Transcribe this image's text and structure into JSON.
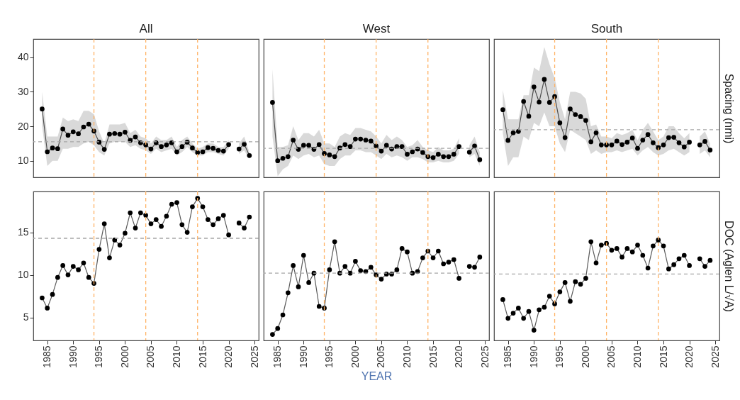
{
  "chart_data": [
    {
      "type": "line",
      "title": "All",
      "x": [
        1984,
        1985,
        1986,
        1987,
        1988,
        1989,
        1990,
        1991,
        1992,
        1993,
        1994,
        1995,
        1996,
        1997,
        1998,
        1999,
        2000,
        2001,
        2002,
        2003,
        2004,
        2005,
        2006,
        2007,
        2008,
        2009,
        2010,
        2011,
        2012,
        2013,
        2014,
        2015,
        2016,
        2017,
        2018,
        2019,
        2020,
        2021,
        2022,
        2023,
        2024
      ],
      "xlim": [
        1982.3,
        2025.8
      ],
      "xticks": [
        1985,
        1990,
        1995,
        2000,
        2005,
        2010,
        2015,
        2020,
        2025
      ],
      "ylim": [
        5.2,
        45.3
      ],
      "yticks": [
        10,
        20,
        30,
        40
      ],
      "tick_labels": "y",
      "marker": "circle",
      "series": [
        {
          "color": "#000000",
          "values": [
            25.0,
            12.6,
            13.7,
            13.5,
            19.2,
            17.4,
            18.4,
            17.8,
            19.8,
            20.6,
            18.6,
            15.4,
            13.3,
            17.7,
            17.9,
            17.7,
            18.3,
            15.9,
            16.9,
            15.2,
            14.6,
            13.4,
            15.2,
            14.1,
            14.6,
            15.2,
            12.6,
            14.1,
            15.4,
            13.7,
            12.4,
            12.6,
            13.8,
            13.6,
            13.0,
            12.8,
            14.7,
            null,
            13.4,
            14.8,
            11.5
          ],
          "lower": [
            20,
            8.5,
            10,
            10,
            13.5,
            13.5,
            14,
            14,
            15,
            15.5,
            14.5,
            12.5,
            11.5,
            15,
            15.5,
            15.5,
            15.5,
            14,
            14.5,
            13.5,
            13,
            12,
            13.5,
            12.5,
            13,
            13.5,
            11.5,
            12.5,
            14,
            12.5,
            11.5,
            11.5,
            12.5,
            12.5,
            12,
            11.5,
            13.5,
            null,
            12,
            13,
            10.5
          ],
          "upper": [
            30,
            17,
            17,
            17,
            22.5,
            21.5,
            22,
            21.5,
            24.5,
            24.5,
            23.5,
            18.5,
            15,
            20.5,
            20.5,
            20.5,
            21,
            18,
            19,
            17,
            16.5,
            15,
            17,
            16,
            16,
            17,
            14,
            16,
            17,
            15,
            13.5,
            14,
            15,
            15,
            14,
            14,
            16,
            null,
            15,
            17,
            12.5
          ]
        }
      ],
      "ref_lines": [
        {
          "axis": "x",
          "value": 1994,
          "color": "#ffb366",
          "line_style": "dashed"
        },
        {
          "axis": "x",
          "value": 2004,
          "color": "#ffb366",
          "line_style": "dashed"
        },
        {
          "axis": "x",
          "value": 2014,
          "color": "#ffb366",
          "line_style": "dashed"
        },
        {
          "axis": "y",
          "value": 15.5,
          "color": "#a6a6a6",
          "line_style": "dashed"
        }
      ]
    },
    {
      "type": "line",
      "title": "West",
      "x": [
        1984,
        1985,
        1986,
        1987,
        1988,
        1989,
        1990,
        1991,
        1992,
        1993,
        1994,
        1995,
        1996,
        1997,
        1998,
        1999,
        2000,
        2001,
        2002,
        2003,
        2004,
        2005,
        2006,
        2007,
        2008,
        2009,
        2010,
        2011,
        2012,
        2013,
        2014,
        2015,
        2016,
        2017,
        2018,
        2019,
        2020,
        2021,
        2022,
        2023,
        2024
      ],
      "xlim": [
        1982.3,
        2025.8
      ],
      "xticks": [
        1985,
        1990,
        1995,
        2000,
        2005,
        2010,
        2015,
        2020,
        2025
      ],
      "ylim": [
        5.2,
        45.3
      ],
      "yticks": [
        10,
        20,
        30,
        40
      ],
      "tick_labels": false,
      "marker": "circle",
      "series": [
        {
          "color": "#000000",
          "values": [
            26.9,
            10.0,
            10.7,
            11.2,
            16.0,
            13.3,
            14.5,
            14.5,
            13.3,
            14.7,
            12.1,
            11.7,
            11.2,
            13.7,
            14.7,
            14.1,
            16.3,
            16.3,
            16.0,
            15.7,
            14.3,
            12.8,
            14.5,
            13.4,
            14.1,
            14.1,
            11.9,
            12.6,
            13.4,
            12.4,
            11.2,
            10.9,
            11.9,
            11.2,
            11.2,
            11.9,
            14.1,
            null,
            12.5,
            14.3,
            10.3
          ],
          "lower": [
            17,
            5.5,
            7.5,
            8.5,
            11.5,
            10.5,
            11.5,
            12,
            11,
            11.5,
            9,
            8.5,
            8.5,
            10.5,
            11.5,
            11.5,
            13,
            13,
            12.5,
            12.5,
            11.5,
            10.5,
            12,
            11,
            11.5,
            11,
            10,
            11,
            11,
            10.5,
            9.5,
            9.5,
            10,
            9.5,
            9.5,
            10,
            12,
            null,
            11,
            12,
            8.5
          ],
          "upper": [
            36.5,
            14,
            14,
            14.5,
            20,
            16,
            18,
            18,
            17,
            19,
            15,
            15,
            14,
            17,
            18,
            17.5,
            19.5,
            19.5,
            19,
            18.5,
            17,
            15,
            17.5,
            16,
            17,
            16,
            14,
            14.5,
            16,
            14,
            13,
            12.5,
            14,
            13,
            13,
            13.5,
            16.5,
            null,
            14.5,
            17,
            12.5
          ]
        }
      ],
      "ref_lines": [
        {
          "axis": "x",
          "value": 1994,
          "color": "#ffb366",
          "line_style": "dashed"
        },
        {
          "axis": "x",
          "value": 2004,
          "color": "#ffb366",
          "line_style": "dashed"
        },
        {
          "axis": "x",
          "value": 2014,
          "color": "#ffb366",
          "line_style": "dashed"
        },
        {
          "axis": "y",
          "value": 13.6,
          "color": "#a6a6a6",
          "line_style": "dashed"
        }
      ]
    },
    {
      "type": "line",
      "title": "South",
      "y2label": "Spacing (nmi)",
      "x": [
        1984,
        1985,
        1986,
        1987,
        1988,
        1989,
        1990,
        1991,
        1992,
        1993,
        1994,
        1995,
        1996,
        1997,
        1998,
        1999,
        2000,
        2001,
        2002,
        2003,
        2004,
        2005,
        2006,
        2007,
        2008,
        2009,
        2010,
        2011,
        2012,
        2013,
        2014,
        2015,
        2016,
        2017,
        2018,
        2019,
        2020,
        2021,
        2022,
        2023,
        2024
      ],
      "xlim": [
        1982.3,
        2025.8
      ],
      "xticks": [
        1985,
        1990,
        1995,
        2000,
        2005,
        2010,
        2015,
        2020,
        2025
      ],
      "ylim": [
        5.2,
        45.3
      ],
      "yticks": [
        10,
        20,
        30,
        40
      ],
      "tick_labels": false,
      "marker": "circle",
      "series": [
        {
          "color": "#000000",
          "values": [
            24.8,
            15.9,
            18.1,
            18.5,
            27.2,
            22.9,
            31.4,
            27.0,
            33.6,
            26.9,
            28.6,
            21.0,
            16.7,
            25.0,
            23.4,
            22.8,
            21.7,
            15.5,
            18.1,
            14.6,
            14.6,
            14.6,
            15.7,
            14.7,
            15.4,
            16.6,
            13.6,
            16.0,
            17.6,
            15.2,
            13.8,
            14.6,
            16.7,
            16.8,
            15.2,
            14.0,
            15.4,
            null,
            14.6,
            15.6,
            13.1
          ],
          "lower": [
            18,
            8.5,
            11,
            11,
            17,
            16,
            21,
            20,
            24,
            20,
            20,
            15,
            12.5,
            19,
            18,
            17,
            16,
            12,
            13,
            12,
            12.5,
            12.5,
            13,
            12.5,
            13,
            13.5,
            11.5,
            13,
            14,
            12.5,
            11.5,
            12,
            13,
            13.5,
            12.5,
            11.5,
            12.5,
            null,
            12,
            13,
            11
          ],
          "upper": [
            30.5,
            22,
            22,
            22,
            29,
            29,
            37,
            36,
            43,
            38,
            34,
            27,
            22,
            30,
            30,
            29.5,
            28,
            20,
            20.5,
            17,
            17,
            16.5,
            18,
            17.5,
            18,
            19,
            16,
            19,
            21,
            18.5,
            16,
            17,
            20,
            20,
            18,
            16.5,
            18,
            null,
            17,
            18.5,
            15
          ]
        }
      ],
      "ref_lines": [
        {
          "axis": "x",
          "value": 1994,
          "color": "#ffb366",
          "line_style": "dashed"
        },
        {
          "axis": "x",
          "value": 2004,
          "color": "#ffb366",
          "line_style": "dashed"
        },
        {
          "axis": "x",
          "value": 2014,
          "color": "#ffb366",
          "line_style": "dashed"
        },
        {
          "axis": "y",
          "value": 19.0,
          "color": "#a6a6a6",
          "line_style": "dashed"
        }
      ]
    },
    {
      "type": "line",
      "x": [
        1984,
        1985,
        1986,
        1987,
        1988,
        1989,
        1990,
        1991,
        1992,
        1993,
        1994,
        1995,
        1996,
        1997,
        1998,
        1999,
        2000,
        2001,
        2002,
        2003,
        2004,
        2005,
        2006,
        2007,
        2008,
        2009,
        2010,
        2011,
        2012,
        2013,
        2014,
        2015,
        2016,
        2017,
        2018,
        2019,
        2020,
        2021,
        2022,
        2023,
        2024
      ],
      "xlim": [
        1982.3,
        2025.8
      ],
      "xticks": [
        1985,
        1990,
        1995,
        2000,
        2005,
        2010,
        2015,
        2020,
        2025
      ],
      "ylim": [
        2.3,
        19.8
      ],
      "yticks": [
        5,
        10,
        15
      ],
      "marker": "circle",
      "series": [
        {
          "color": "#000000",
          "values": [
            7.3,
            6.1,
            7.7,
            9.7,
            11.1,
            10.0,
            11.0,
            10.6,
            11.4,
            9.7,
            9.0,
            13.0,
            16.0,
            12.0,
            14.1,
            13.5,
            14.9,
            17.3,
            15.5,
            17.3,
            17.0,
            16.0,
            16.5,
            15.7,
            16.9,
            18.3,
            18.5,
            15.9,
            15.0,
            18.0,
            19.0,
            18.0,
            16.5,
            15.9,
            16.6,
            17.0,
            14.7,
            null,
            16.1,
            15.5,
            16.8
          ]
        }
      ],
      "ref_lines": [
        {
          "axis": "x",
          "value": 1994,
          "color": "#ffb366",
          "line_style": "dashed"
        },
        {
          "axis": "x",
          "value": 2004,
          "color": "#ffb366",
          "line_style": "dashed"
        },
        {
          "axis": "x",
          "value": 2014,
          "color": "#ffb366",
          "line_style": "dashed"
        },
        {
          "axis": "y",
          "value": 14.3,
          "color": "#a6a6a6",
          "line_style": "dashed"
        }
      ]
    },
    {
      "type": "line",
      "xlabel": "YEAR",
      "x": [
        1984,
        1985,
        1986,
        1987,
        1988,
        1989,
        1990,
        1991,
        1992,
        1993,
        1994,
        1995,
        1996,
        1997,
        1998,
        1999,
        2000,
        2001,
        2002,
        2003,
        2004,
        2005,
        2006,
        2007,
        2008,
        2009,
        2010,
        2011,
        2012,
        2013,
        2014,
        2015,
        2016,
        2017,
        2018,
        2019,
        2020,
        2021,
        2022,
        2023,
        2024
      ],
      "xlim": [
        1982.3,
        2025.8
      ],
      "xticks": [
        1985,
        1990,
        1995,
        2000,
        2005,
        2010,
        2015,
        2020,
        2025
      ],
      "ylim": [
        2.3,
        19.8
      ],
      "yticks": [
        5,
        10,
        15
      ],
      "tick_labels": "x",
      "marker": "circle",
      "series": [
        {
          "color": "#000000",
          "values": [
            3.0,
            3.7,
            5.3,
            7.9,
            11.1,
            8.6,
            12.3,
            9.1,
            10.2,
            6.3,
            6.1,
            10.6,
            13.9,
            10.2,
            11.0,
            10.2,
            11.6,
            10.5,
            10.4,
            10.9,
            10.0,
            9.5,
            10.1,
            10.1,
            10.6,
            13.1,
            12.7,
            10.2,
            10.4,
            12.0,
            12.8,
            12.0,
            12.8,
            11.3,
            11.5,
            11.8,
            9.6,
            null,
            11.0,
            10.9,
            12.1
          ]
        }
      ],
      "ref_lines": [
        {
          "axis": "x",
          "value": 1994,
          "color": "#ffb366",
          "line_style": "dashed"
        },
        {
          "axis": "x",
          "value": 2004,
          "color": "#ffb366",
          "line_style": "dashed"
        },
        {
          "axis": "x",
          "value": 2014,
          "color": "#ffb366",
          "line_style": "dashed"
        },
        {
          "axis": "y",
          "value": 10.2,
          "color": "#a6a6a6",
          "line_style": "dashed"
        }
      ]
    },
    {
      "type": "line",
      "y2label": "DOC (Aglen L/√A)",
      "x": [
        1984,
        1985,
        1986,
        1987,
        1988,
        1989,
        1990,
        1991,
        1992,
        1993,
        1994,
        1995,
        1996,
        1997,
        1998,
        1999,
        2000,
        2001,
        2002,
        2003,
        2004,
        2005,
        2006,
        2007,
        2008,
        2009,
        2010,
        2011,
        2012,
        2013,
        2014,
        2015,
        2016,
        2017,
        2018,
        2019,
        2020,
        2021,
        2022,
        2023,
        2024
      ],
      "xlim": [
        1982.3,
        2025.8
      ],
      "xticks": [
        1985,
        1990,
        1995,
        2000,
        2005,
        2010,
        2015,
        2020,
        2025
      ],
      "ylim": [
        2.3,
        19.8
      ],
      "yticks": [
        5,
        10,
        15
      ],
      "tick_labels": "x",
      "marker": "circle",
      "series": [
        {
          "color": "#000000",
          "values": [
            7.1,
            4.9,
            5.5,
            6.1,
            4.9,
            5.7,
            3.5,
            5.9,
            6.2,
            7.5,
            6.6,
            8.0,
            9.1,
            6.9,
            9.2,
            8.9,
            9.6,
            13.9,
            11.4,
            13.5,
            13.7,
            12.9,
            13.1,
            12.1,
            13.1,
            12.7,
            13.5,
            12.3,
            10.8,
            13.4,
            14.1,
            13.4,
            10.7,
            11.2,
            11.9,
            12.3,
            11.1,
            null,
            11.9,
            11.0,
            11.7
          ]
        }
      ],
      "ref_lines": [
        {
          "axis": "x",
          "value": 1994,
          "color": "#ffb366",
          "line_style": "dashed"
        },
        {
          "axis": "x",
          "value": 2004,
          "color": "#ffb366",
          "line_style": "dashed"
        },
        {
          "axis": "x",
          "value": 2014,
          "color": "#ffb366",
          "line_style": "dashed"
        },
        {
          "axis": "y",
          "value": 10.1,
          "color": "#a6a6a6",
          "line_style": "dashed"
        }
      ]
    }
  ]
}
